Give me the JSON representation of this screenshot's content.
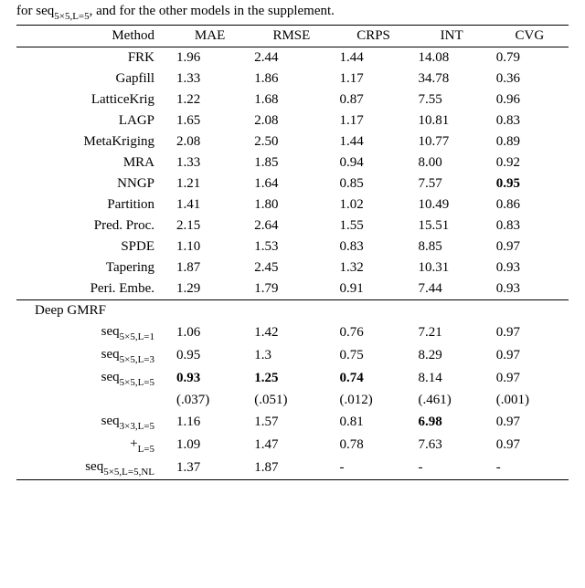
{
  "caption_prefix": "for seq",
  "caption_sub": "5×5,L=5",
  "caption_suffix": ", and for the other models in the supplement.",
  "columns": [
    "Method",
    "MAE",
    "RMSE",
    "CRPS",
    "INT",
    "CVG"
  ],
  "top_rows": [
    {
      "method": "FRK",
      "mae": "1.96",
      "rmse": "2.44",
      "crps": "1.44",
      "int": "14.08",
      "cvg": "0.79"
    },
    {
      "method": "Gapfill",
      "mae": "1.33",
      "rmse": "1.86",
      "crps": "1.17",
      "int": "34.78",
      "cvg": "0.36"
    },
    {
      "method": "LatticeKrig",
      "mae": "1.22",
      "rmse": "1.68",
      "crps": "0.87",
      "int": "7.55",
      "cvg": "0.96"
    },
    {
      "method": "LAGP",
      "mae": "1.65",
      "rmse": "2.08",
      "crps": "1.17",
      "int": "10.81",
      "cvg": "0.83"
    },
    {
      "method": "MetaKriging",
      "mae": "2.08",
      "rmse": "2.50",
      "crps": "1.44",
      "int": "10.77",
      "cvg": "0.89"
    },
    {
      "method": "MRA",
      "mae": "1.33",
      "rmse": "1.85",
      "crps": "0.94",
      "int": "8.00",
      "cvg": "0.92"
    },
    {
      "method": "NNGP",
      "mae": "1.21",
      "rmse": "1.64",
      "crps": "0.85",
      "int": "7.57",
      "cvg": "0.95",
      "cvg_bold": true
    },
    {
      "method": "Partition",
      "mae": "1.41",
      "rmse": "1.80",
      "crps": "1.02",
      "int": "10.49",
      "cvg": "0.86"
    },
    {
      "method": "Pred. Proc.",
      "mae": "2.15",
      "rmse": "2.64",
      "crps": "1.55",
      "int": "15.51",
      "cvg": "0.83"
    },
    {
      "method": "SPDE",
      "mae": "1.10",
      "rmse": "1.53",
      "crps": "0.83",
      "int": "8.85",
      "cvg": "0.97"
    },
    {
      "method": "Tapering",
      "mae": "1.87",
      "rmse": "2.45",
      "crps": "1.32",
      "int": "10.31",
      "cvg": "0.93"
    },
    {
      "method": "Peri. Embe.",
      "mae": "1.29",
      "rmse": "1.79",
      "crps": "0.91",
      "int": "7.44",
      "cvg": "0.93"
    }
  ],
  "section_label": "Deep GMRF",
  "bottom_rows": [
    {
      "prefix": "seq",
      "sub": "5×5,L=1",
      "mae": "1.06",
      "rmse": "1.42",
      "crps": "0.76",
      "int": "7.21",
      "cvg": "0.97"
    },
    {
      "prefix": "seq",
      "sub": "5×5,L=3",
      "mae": "0.95",
      "rmse": "1.3",
      "crps": "0.75",
      "int": "8.29",
      "cvg": "0.97"
    },
    {
      "prefix": "seq",
      "sub": "5×5,L=5",
      "mae": "0.93",
      "mae_bold": true,
      "rmse": "1.25",
      "rmse_bold": true,
      "crps": "0.74",
      "crps_bold": true,
      "int": "8.14",
      "cvg": "0.97"
    },
    {
      "prefix": "",
      "sub": "",
      "mae": "(.037)",
      "rmse": "(.051)",
      "crps": "(.012)",
      "int": "(.461)",
      "cvg": "(.001)"
    },
    {
      "prefix": "seq",
      "sub": "3×3,L=5",
      "mae": "1.16",
      "rmse": "1.57",
      "crps": "0.81",
      "int": "6.98",
      "int_bold": true,
      "cvg": "0.97"
    },
    {
      "prefix": "+",
      "sub": "L=5",
      "mae": "1.09",
      "rmse": "1.47",
      "crps": "0.78",
      "int": "7.63",
      "cvg": "0.97"
    },
    {
      "prefix": "seq",
      "sub": "5×5,L=5,NL",
      "mae": "1.37",
      "rmse": "1.87",
      "crps": "-",
      "int": "-",
      "cvg": "-"
    }
  ]
}
